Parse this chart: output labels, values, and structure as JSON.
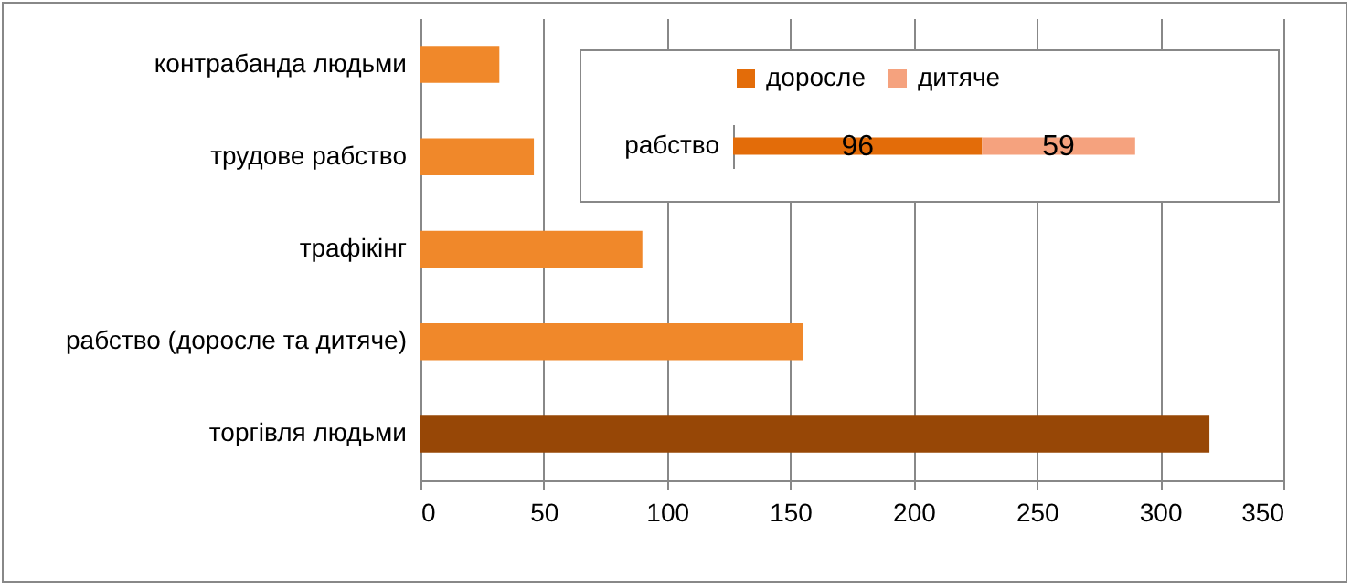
{
  "chart_data": [
    {
      "type": "bar",
      "orientation": "horizontal",
      "categories": [
        "контрабанда людьми",
        "трудове рабство",
        "трафікінг",
        "рабство (доросле та дитяче)",
        "торгівля людьми"
      ],
      "values": [
        32,
        46,
        90,
        155,
        320
      ],
      "colors": [
        "#f0882a",
        "#f0882a",
        "#f0882a",
        "#f0882a",
        "#974706"
      ],
      "xlim": [
        0,
        350
      ],
      "xticks": [
        0,
        50,
        100,
        150,
        200,
        250,
        300,
        350
      ],
      "grid": true
    },
    {
      "type": "bar",
      "orientation": "horizontal",
      "stacked": true,
      "categories": [
        "рабство"
      ],
      "series": [
        {
          "name": "доросле",
          "color": "#e36c09",
          "values": [
            96
          ]
        },
        {
          "name": "дитяче",
          "color": "#f5a27e",
          "values": [
            59
          ]
        }
      ],
      "data_labels": true,
      "legend": "top",
      "tick_labels": "y"
    }
  ]
}
